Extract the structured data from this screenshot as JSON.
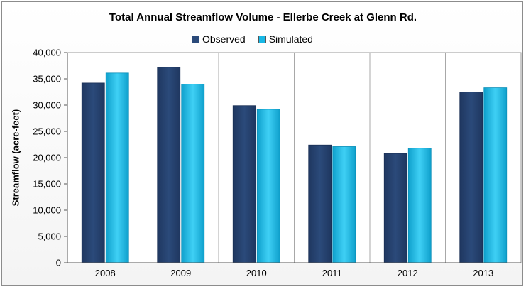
{
  "chart_data": {
    "type": "bar",
    "title": "Total Annual Streamflow Volume - Ellerbe Creek at Glenn Rd.",
    "xlabel": "",
    "ylabel": "Streamflow (acre-feet)",
    "categories": [
      "2008",
      "2009",
      "2010",
      "2011",
      "2012",
      "2013"
    ],
    "series": [
      {
        "name": "Observed",
        "values": [
          34200,
          37200,
          29900,
          22400,
          20800,
          32500
        ],
        "color": "#2b4a7a"
      },
      {
        "name": "Simulated",
        "values": [
          36100,
          34000,
          29200,
          22100,
          21800,
          33300
        ],
        "color": "#17b8e6"
      }
    ],
    "ylim": [
      0,
      40000
    ],
    "yticks": [
      "0",
      "5,000",
      "10,000",
      "15,000",
      "20,000",
      "25,000",
      "30,000",
      "35,000",
      "40,000"
    ],
    "grid": "vertical category separators",
    "legend_position": "top-center"
  }
}
